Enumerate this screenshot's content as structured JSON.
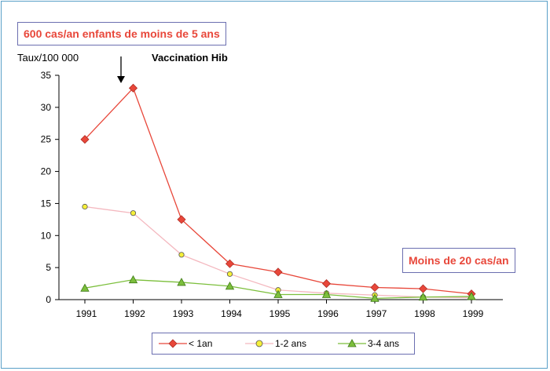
{
  "chart_data": {
    "type": "line",
    "title": "Vaccination Hib",
    "ylabel": "Taux/100 000",
    "xlabel": "",
    "categories": [
      "1991",
      "1992",
      "1993",
      "1994",
      "1995",
      "1996",
      "1997",
      "1998",
      "1999"
    ],
    "ylim": [
      0,
      35
    ],
    "yticks": [
      0,
      5,
      10,
      15,
      20,
      25,
      30,
      35
    ],
    "grid": false,
    "legend_position": "bottom",
    "series": [
      {
        "name": "< 1an",
        "marker": "diamond",
        "color": "#e8473a",
        "values": [
          25,
          33,
          12.5,
          5.6,
          4.3,
          2.5,
          1.9,
          1.7,
          0.9
        ]
      },
      {
        "name": "1-2 ans",
        "marker": "circle",
        "color": "#f4b8bf",
        "marker_fill": "#f5ef3a",
        "values": [
          14.5,
          13.5,
          7,
          4,
          1.5,
          1,
          0.7,
          0.4,
          0.3
        ]
      },
      {
        "name": "3-4 ans",
        "marker": "triangle",
        "color": "#7cbf3c",
        "values": [
          1.8,
          3.1,
          2.7,
          2.1,
          0.8,
          0.8,
          0.2,
          0.4,
          0.5
        ]
      }
    ],
    "annotations": {
      "top_box": "600 cas/an enfants de moins de 5 ans",
      "bottom_box": "Moins de 20 cas/an",
      "vaccination": "Vaccination Hib"
    }
  }
}
